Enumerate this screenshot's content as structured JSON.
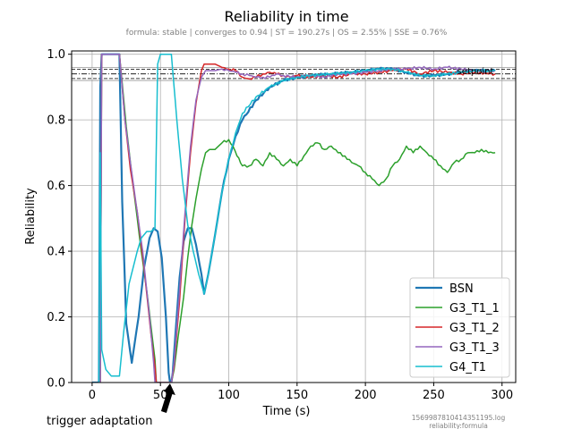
{
  "chart_data": {
    "type": "line",
    "title": "Reliability in time",
    "subtitle": "formula: stable | converges to 0.94 | ST = 190.27s | OS = 2.55% | SSE = 0.76%",
    "xlabel": "Time (s)",
    "ylabel": "Reliability",
    "xlim": [
      -15,
      310
    ],
    "ylim": [
      0.0,
      1.01
    ],
    "x_ticks": [
      0,
      50,
      100,
      150,
      200,
      250,
      300
    ],
    "y_ticks": [
      0.0,
      0.2,
      0.4,
      0.6,
      0.8,
      1.0
    ],
    "grid": true,
    "legend_position": "lower-right",
    "setpoint": {
      "label": "setpoint",
      "value": 0.94,
      "band_low": 0.9259,
      "band_high": 0.9541,
      "upper": 0.96,
      "lower": 0.92
    },
    "annotation": {
      "text": "trigger adaptation",
      "x": 57,
      "y": 0.0
    },
    "footnote_lines": [
      "1569987810414351195.log",
      "reliability:formula"
    ],
    "series": [
      {
        "name": "BSN",
        "color": "#1f77b4",
        "width": 2.2,
        "points": [
          [
            0,
            0
          ],
          [
            5,
            0
          ],
          [
            6,
            0.9
          ],
          [
            7,
            1.0
          ],
          [
            20,
            1.0
          ],
          [
            22,
            0.55
          ],
          [
            25,
            0.18
          ],
          [
            29,
            0.06
          ],
          [
            34,
            0.2
          ],
          [
            38,
            0.35
          ],
          [
            42,
            0.44
          ],
          [
            45,
            0.47
          ],
          [
            48,
            0.46
          ],
          [
            51,
            0.38
          ],
          [
            54,
            0.2
          ],
          [
            56,
            0.03
          ],
          [
            57,
            0
          ],
          [
            58,
            0
          ],
          [
            59,
            0.03
          ],
          [
            61,
            0.15
          ],
          [
            64,
            0.32
          ],
          [
            67,
            0.43
          ],
          [
            70,
            0.47
          ],
          [
            73,
            0.47
          ],
          [
            76,
            0.42
          ],
          [
            80,
            0.33
          ],
          [
            82,
            0.27
          ],
          [
            85,
            0.33
          ],
          [
            90,
            0.45
          ],
          [
            95,
            0.58
          ],
          [
            100,
            0.68
          ],
          [
            105,
            0.75
          ],
          [
            110,
            0.8
          ],
          [
            120,
            0.86
          ],
          [
            130,
            0.9
          ],
          [
            140,
            0.92
          ],
          [
            150,
            0.93
          ],
          [
            160,
            0.935
          ],
          [
            175,
            0.94
          ],
          [
            190,
            0.945
          ],
          [
            200,
            0.95
          ],
          [
            210,
            0.955
          ],
          [
            220,
            0.955
          ],
          [
            230,
            0.945
          ],
          [
            240,
            0.935
          ],
          [
            250,
            0.935
          ],
          [
            260,
            0.94
          ],
          [
            270,
            0.945
          ],
          [
            280,
            0.95
          ],
          [
            290,
            0.95
          ],
          [
            295,
            0.95
          ]
        ]
      },
      {
        "name": "G3_T1_1",
        "color": "#2ca02c",
        "width": 1.5,
        "points": [
          [
            6,
            0
          ],
          [
            7,
            1.0
          ],
          [
            20,
            1.0
          ],
          [
            25,
            0.78
          ],
          [
            30,
            0.6
          ],
          [
            33,
            0.5
          ],
          [
            36,
            0.4
          ],
          [
            40,
            0.28
          ],
          [
            44,
            0.14
          ],
          [
            46,
            0.07
          ],
          [
            47,
            0
          ],
          [
            48,
            0
          ],
          [
            50,
            0
          ],
          [
            55,
            0
          ],
          [
            58,
            0
          ],
          [
            60,
            0.04
          ],
          [
            63,
            0.14
          ],
          [
            67,
            0.26
          ],
          [
            70,
            0.38
          ],
          [
            73,
            0.48
          ],
          [
            76,
            0.56
          ],
          [
            80,
            0.65
          ],
          [
            83,
            0.7
          ],
          [
            86,
            0.71
          ],
          [
            90,
            0.71
          ],
          [
            95,
            0.73
          ],
          [
            100,
            0.74
          ],
          [
            103,
            0.72
          ],
          [
            106,
            0.69
          ],
          [
            110,
            0.66
          ],
          [
            115,
            0.66
          ],
          [
            120,
            0.68
          ],
          [
            125,
            0.66
          ],
          [
            130,
            0.7
          ],
          [
            135,
            0.68
          ],
          [
            140,
            0.66
          ],
          [
            145,
            0.68
          ],
          [
            150,
            0.66
          ],
          [
            155,
            0.69
          ],
          [
            160,
            0.72
          ],
          [
            165,
            0.73
          ],
          [
            170,
            0.71
          ],
          [
            175,
            0.72
          ],
          [
            180,
            0.7
          ],
          [
            185,
            0.69
          ],
          [
            190,
            0.67
          ],
          [
            195,
            0.66
          ],
          [
            200,
            0.64
          ],
          [
            205,
            0.62
          ],
          [
            210,
            0.6
          ],
          [
            215,
            0.62
          ],
          [
            220,
            0.66
          ],
          [
            225,
            0.68
          ],
          [
            230,
            0.72
          ],
          [
            235,
            0.7
          ],
          [
            240,
            0.72
          ],
          [
            245,
            0.7
          ],
          [
            250,
            0.68
          ],
          [
            255,
            0.66
          ],
          [
            260,
            0.64
          ],
          [
            265,
            0.67
          ],
          [
            270,
            0.68
          ],
          [
            275,
            0.7
          ],
          [
            280,
            0.7
          ],
          [
            285,
            0.71
          ],
          [
            290,
            0.7
          ],
          [
            295,
            0.7
          ]
        ]
      },
      {
        "name": "G3_T1_2",
        "color": "#d62728",
        "width": 1.5,
        "points": [
          [
            6,
            0
          ],
          [
            7,
            1.0
          ],
          [
            20,
            1.0
          ],
          [
            24,
            0.8
          ],
          [
            28,
            0.65
          ],
          [
            33,
            0.52
          ],
          [
            38,
            0.35
          ],
          [
            43,
            0.15
          ],
          [
            46,
            0.05
          ],
          [
            47,
            0
          ],
          [
            55,
            0
          ],
          [
            58,
            0
          ],
          [
            60,
            0.05
          ],
          [
            64,
            0.25
          ],
          [
            68,
            0.5
          ],
          [
            72,
            0.7
          ],
          [
            76,
            0.85
          ],
          [
            80,
            0.95
          ],
          [
            82,
            0.97
          ],
          [
            85,
            0.97
          ],
          [
            90,
            0.97
          ],
          [
            95,
            0.96
          ],
          [
            100,
            0.955
          ],
          [
            105,
            0.95
          ],
          [
            110,
            0.93
          ],
          [
            115,
            0.925
          ],
          [
            120,
            0.93
          ],
          [
            125,
            0.94
          ],
          [
            130,
            0.945
          ],
          [
            135,
            0.94
          ],
          [
            140,
            0.935
          ],
          [
            145,
            0.93
          ],
          [
            150,
            0.935
          ],
          [
            160,
            0.93
          ],
          [
            170,
            0.935
          ],
          [
            180,
            0.93
          ],
          [
            190,
            0.94
          ],
          [
            200,
            0.94
          ],
          [
            210,
            0.945
          ],
          [
            220,
            0.95
          ],
          [
            230,
            0.955
          ],
          [
            240,
            0.94
          ],
          [
            250,
            0.95
          ],
          [
            260,
            0.945
          ],
          [
            270,
            0.94
          ],
          [
            280,
            0.945
          ],
          [
            290,
            0.94
          ],
          [
            295,
            0.94
          ]
        ]
      },
      {
        "name": "G3_T1_3",
        "color": "#9467bd",
        "width": 1.5,
        "points": [
          [
            6,
            0
          ],
          [
            7,
            1.0
          ],
          [
            20,
            1.0
          ],
          [
            24,
            0.8
          ],
          [
            28,
            0.67
          ],
          [
            32,
            0.55
          ],
          [
            37,
            0.4
          ],
          [
            42,
            0.2
          ],
          [
            45,
            0.06
          ],
          [
            46,
            0
          ],
          [
            55,
            0
          ],
          [
            58,
            0
          ],
          [
            60,
            0.06
          ],
          [
            64,
            0.28
          ],
          [
            68,
            0.52
          ],
          [
            72,
            0.72
          ],
          [
            76,
            0.86
          ],
          [
            80,
            0.93
          ],
          [
            83,
            0.95
          ],
          [
            90,
            0.95
          ],
          [
            95,
            0.955
          ],
          [
            100,
            0.95
          ],
          [
            105,
            0.945
          ],
          [
            110,
            0.94
          ],
          [
            115,
            0.935
          ],
          [
            120,
            0.93
          ],
          [
            125,
            0.93
          ],
          [
            130,
            0.93
          ],
          [
            135,
            0.94
          ],
          [
            140,
            0.935
          ],
          [
            150,
            0.93
          ],
          [
            160,
            0.935
          ],
          [
            170,
            0.93
          ],
          [
            180,
            0.94
          ],
          [
            190,
            0.94
          ],
          [
            200,
            0.945
          ],
          [
            210,
            0.95
          ],
          [
            220,
            0.955
          ],
          [
            230,
            0.955
          ],
          [
            240,
            0.96
          ],
          [
            250,
            0.955
          ],
          [
            260,
            0.96
          ],
          [
            270,
            0.955
          ],
          [
            280,
            0.95
          ],
          [
            290,
            0.95
          ],
          [
            295,
            0.95
          ]
        ]
      },
      {
        "name": "G4_T1",
        "color": "#17becf",
        "width": 1.5,
        "points": [
          [
            5,
            0
          ],
          [
            6,
            0.7
          ],
          [
            7,
            0.1
          ],
          [
            10,
            0.04
          ],
          [
            14,
            0.02
          ],
          [
            20,
            0.02
          ],
          [
            23,
            0.15
          ],
          [
            27,
            0.3
          ],
          [
            30,
            0.35
          ],
          [
            33,
            0.4
          ],
          [
            36,
            0.44
          ],
          [
            40,
            0.46
          ],
          [
            43,
            0.46
          ],
          [
            46,
            0.47
          ],
          [
            48,
            0.97
          ],
          [
            50,
            1.0
          ],
          [
            56,
            1.0
          ],
          [
            58,
            1.0
          ],
          [
            62,
            0.8
          ],
          [
            66,
            0.62
          ],
          [
            70,
            0.48
          ],
          [
            74,
            0.4
          ],
          [
            78,
            0.33
          ],
          [
            82,
            0.27
          ],
          [
            85,
            0.33
          ],
          [
            90,
            0.45
          ],
          [
            95,
            0.58
          ],
          [
            100,
            0.68
          ],
          [
            105,
            0.76
          ],
          [
            110,
            0.82
          ],
          [
            120,
            0.87
          ],
          [
            130,
            0.9
          ],
          [
            140,
            0.92
          ],
          [
            150,
            0.93
          ],
          [
            160,
            0.935
          ],
          [
            175,
            0.94
          ],
          [
            190,
            0.945
          ],
          [
            200,
            0.95
          ],
          [
            210,
            0.955
          ],
          [
            220,
            0.955
          ],
          [
            230,
            0.945
          ],
          [
            240,
            0.935
          ],
          [
            250,
            0.935
          ],
          [
            260,
            0.94
          ],
          [
            270,
            0.945
          ],
          [
            280,
            0.95
          ],
          [
            290,
            0.95
          ],
          [
            295,
            0.95
          ]
        ]
      }
    ]
  }
}
